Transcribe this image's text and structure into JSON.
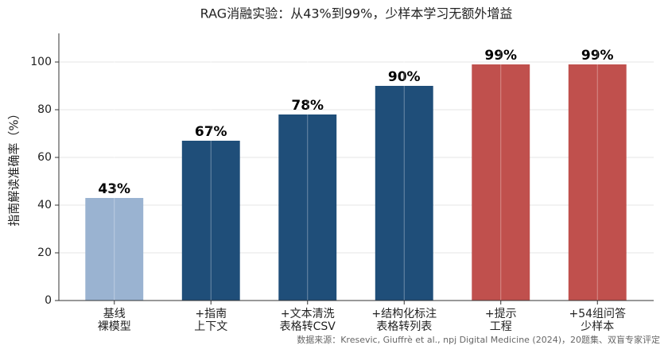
{
  "chart_data": {
    "type": "bar",
    "title": "RAG消融实验：从43%到99%，少样本学习无额外增益",
    "y_label": "指南解读准确率（%）",
    "categories": [
      [
        "基线",
        "裸模型"
      ],
      [
        "+指南",
        "上下文"
      ],
      [
        "+文本清洗",
        "表格转CSV"
      ],
      [
        "+结构化标注",
        "表格转列表"
      ],
      [
        "+提示",
        "工程"
      ],
      [
        "+54组问答",
        "少样本"
      ]
    ],
    "values": [
      43,
      67,
      78,
      90,
      99,
      99
    ],
    "value_labels": [
      "43%",
      "67%",
      "78%",
      "90%",
      "99%",
      "99%"
    ],
    "colors": [
      "#9ab3d1",
      "#1f4e79",
      "#1f4e79",
      "#1f4e79",
      "#c0504d",
      "#c0504d"
    ],
    "ylim": [
      0,
      112
    ],
    "yticks": [
      0,
      20,
      40,
      60,
      80,
      100
    ],
    "grid": true,
    "source": "数据来源：Kresevic, Giuffrè et al., npj Digital Medicine (2024)，20题集、双盲专家评定"
  }
}
